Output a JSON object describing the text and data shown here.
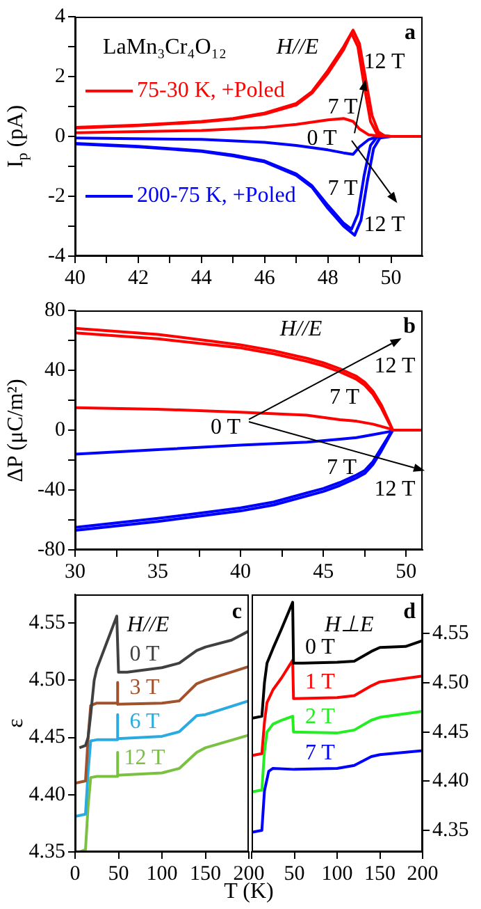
{
  "chart_data": [
    {
      "type": "line",
      "ylabel": "I$_{p}$ (pA)",
      "xlim": [
        40,
        51
      ],
      "xticks": [
        40,
        {
          "value": 41,
          "label": null
        },
        42,
        {
          "value": 43,
          "label": null
        },
        44,
        {
          "value": 45,
          "label": null
        },
        46,
        {
          "value": 47,
          "label": null
        },
        48,
        {
          "value": 49,
          "label": null
        },
        50
      ],
      "ylim": [
        -4,
        4
      ],
      "yticks": [
        -4,
        {
          "value": -3,
          "label": null
        },
        -2,
        {
          "value": -1,
          "label": null
        },
        0,
        {
          "value": 1,
          "label": null
        },
        2,
        {
          "value": 3,
          "label": null
        },
        4
      ],
      "legend": "left",
      "annotations": [
        "LaMn₃Cr₄O₁₂",
        "H//E",
        "a",
        {
          "text": "12 T",
          "x": 49.2,
          "y": 1.9
        },
        "7 T",
        "0 T",
        "7 T",
        "12 T"
      ],
      "series": [
        {
          "name": "75-30 K, +Poled",
          "color": "#ff0000",
          "x": [
            40,
            44,
            46,
            47,
            48,
            48.5,
            48.8,
            49,
            49.3,
            49.6,
            50,
            51
          ],
          "values": [
            0.12,
            0.2,
            0.3,
            0.4,
            0.55,
            0.6,
            0.5,
            0.25,
            0.05,
            0.02,
            0,
            0
          ]
        },
        {
          "color": "#ff0000",
          "x": [
            40,
            42,
            44,
            45,
            46,
            47,
            47.5,
            48,
            48.5,
            48.75,
            48.95,
            49.15,
            49.35,
            49.55,
            49.8,
            50,
            51
          ],
          "values": [
            0.28,
            0.36,
            0.48,
            0.58,
            0.75,
            1.05,
            1.45,
            2.1,
            2.9,
            3.45,
            3.0,
            1.7,
            0.5,
            0.1,
            0.02,
            0,
            0
          ]
        },
        {
          "color": "#ff0000",
          "x": [
            40,
            42,
            44,
            45,
            46,
            47,
            47.5,
            48,
            48.5,
            48.8,
            49,
            49.2,
            49.4,
            49.6,
            49.8,
            50,
            51
          ],
          "values": [
            0.3,
            0.38,
            0.5,
            0.6,
            0.78,
            1.1,
            1.5,
            2.2,
            3.0,
            3.55,
            3.1,
            1.9,
            0.7,
            0.15,
            0.02,
            0,
            0
          ]
        },
        {
          "name": "200-75 K, +Poled",
          "color": "#0000ff",
          "x": [
            40,
            44,
            46,
            47,
            48,
            48.5,
            48.8,
            49,
            49.3,
            49.6,
            50,
            51
          ],
          "values": [
            -0.05,
            -0.1,
            -0.2,
            -0.3,
            -0.45,
            -0.55,
            -0.6,
            -0.35,
            -0.1,
            0,
            0,
            0
          ]
        },
        {
          "color": "#0000ff",
          "x": [
            40,
            42,
            44,
            45,
            46,
            47,
            47.5,
            48,
            48.5,
            48.75,
            48.95,
            49.15,
            49.35,
            49.55,
            50,
            51
          ],
          "values": [
            -0.23,
            -0.33,
            -0.48,
            -0.62,
            -0.82,
            -1.25,
            -1.65,
            -2.3,
            -2.9,
            -3.1,
            -2.6,
            -1.3,
            -0.3,
            -0.03,
            0,
            0
          ]
        },
        {
          "color": "#0000ff",
          "x": [
            40,
            42,
            44,
            45,
            46,
            47,
            47.5,
            48,
            48.5,
            48.85,
            49.05,
            49.25,
            49.45,
            49.65,
            50,
            51
          ],
          "values": [
            -0.25,
            -0.35,
            -0.5,
            -0.65,
            -0.85,
            -1.3,
            -1.7,
            -2.4,
            -3.0,
            -3.3,
            -2.8,
            -1.5,
            -0.4,
            -0.05,
            0,
            0
          ]
        }
      ]
    },
    {
      "type": "line",
      "ylabel": "ΔP (μC/m²)",
      "xlim": [
        30,
        51
      ],
      "xticks": [
        30,
        {
          "value": 32.5,
          "label": null
        },
        35,
        {
          "value": 37.5,
          "label": null
        },
        40,
        {
          "value": 42.5,
          "label": null
        },
        45,
        {
          "value": 47.5,
          "label": null
        },
        50
      ],
      "ylim": [
        -80,
        80
      ],
      "yticks": [
        -80,
        {
          "value": -60,
          "label": null
        },
        -40,
        {
          "value": -20,
          "label": null
        },
        0,
        {
          "value": 20,
          "label": null
        },
        40,
        {
          "value": 60,
          "label": null
        },
        80
      ],
      "annotations": [
        "H//E",
        "b",
        "12 T",
        "7 T",
        "0 T",
        "7 T",
        "12 T"
      ],
      "series": [
        {
          "color": "#ff0000",
          "x": [
            30,
            35,
            40,
            44,
            46,
            47,
            48,
            49,
            49.2,
            51
          ],
          "values": [
            15,
            14,
            12,
            10,
            7,
            6,
            4,
            1,
            0,
            0
          ]
        },
        {
          "color": "#ff0000",
          "x": [
            30,
            35,
            40,
            42,
            44,
            45,
            46,
            47,
            47.5,
            48,
            48.5,
            49,
            49.2,
            50,
            51
          ],
          "values": [
            65,
            61,
            55,
            51,
            46,
            43,
            39,
            34,
            30,
            24,
            15,
            4,
            0,
            0,
            0
          ]
        },
        {
          "color": "#ff0000",
          "x": [
            30,
            35,
            40,
            42,
            44,
            45,
            46,
            47,
            47.5,
            48,
            48.5,
            49,
            49.2,
            50,
            51
          ],
          "values": [
            68,
            64,
            57,
            53,
            48,
            45,
            41,
            36,
            32,
            26,
            17,
            5,
            0,
            0,
            0
          ]
        },
        {
          "color": "#0000ff",
          "x": [
            30,
            35,
            40,
            44,
            46,
            47,
            48,
            49,
            49.2,
            51
          ],
          "values": [
            -16,
            -13,
            -10,
            -8,
            -6,
            -5,
            -3,
            -1,
            0,
            0
          ]
        },
        {
          "color": "#0000ff",
          "x": [
            30,
            35,
            40,
            42,
            44,
            45,
            46,
            47,
            47.5,
            48,
            48.5,
            49,
            49.2,
            50,
            51
          ],
          "values": [
            -65,
            -59,
            -52,
            -48,
            -42,
            -39,
            -35,
            -30,
            -27,
            -21,
            -12,
            -3,
            0,
            0,
            0
          ]
        },
        {
          "color": "#0000ff",
          "x": [
            30,
            35,
            40,
            42,
            44,
            45,
            46,
            47,
            47.5,
            48,
            48.5,
            49,
            49.2,
            50,
            51
          ],
          "values": [
            -67,
            -61,
            -54,
            -50,
            -44,
            -41,
            -37,
            -32,
            -29,
            -23,
            -14,
            -4,
            0,
            0,
            0
          ]
        }
      ]
    },
    {
      "type": "line",
      "xlabel": "T (K)",
      "ylabel": "ε",
      "xlim": [
        0,
        200
      ],
      "xticks": [
        0,
        50,
        100,
        150,
        200
      ],
      "ylim": [
        4.35,
        4.575
      ],
      "yticks": [
        4.35,
        {
          "value": 4.4,
          "label": "4.40"
        },
        4.45,
        {
          "value": 4.5,
          "label": "4.50"
        },
        4.55
      ],
      "annotations": [
        "H//E",
        "c"
      ],
      "series": [
        {
          "name": "0 T",
          "color": "#404040",
          "x": [
            5,
            12,
            15,
            18,
            22,
            25,
            35,
            48,
            50,
            60,
            100,
            120,
            140,
            150,
            180,
            200
          ],
          "values": [
            4.441,
            4.443,
            4.45,
            4.47,
            4.5,
            4.51,
            4.53,
            4.556,
            4.507,
            4.507,
            4.511,
            4.515,
            4.526,
            4.529,
            4.535,
            4.543
          ]
        },
        {
          "name": "3 T",
          "color": "#a0522d",
          "x": [
            0,
            12,
            15,
            18,
            25,
            48,
            48.5,
            49.5,
            100,
            120,
            140,
            150,
            200
          ],
          "values": [
            4.41,
            4.412,
            4.45,
            4.478,
            4.48,
            4.48,
            4.498,
            4.479,
            4.48,
            4.482,
            4.497,
            4.5,
            4.512
          ]
        },
        {
          "name": "6 T",
          "color": "#29abe2",
          "x": [
            0,
            12,
            15,
            18,
            25,
            48,
            48.5,
            49.5,
            100,
            120,
            140,
            150,
            200
          ],
          "values": [
            4.381,
            4.383,
            4.42,
            4.447,
            4.448,
            4.448,
            4.47,
            4.449,
            4.451,
            4.455,
            4.469,
            4.47,
            4.482
          ]
        },
        {
          "name": "12 T",
          "color": "#7ac142",
          "x": [
            5,
            12,
            15,
            18,
            25,
            48,
            48.5,
            49.5,
            100,
            120,
            140,
            150,
            200
          ],
          "values": [
            4.35,
            4.352,
            4.39,
            4.415,
            4.416,
            4.416,
            4.437,
            4.417,
            4.419,
            4.423,
            4.437,
            4.441,
            4.452
          ]
        }
      ]
    },
    {
      "type": "line",
      "xlim": [
        0,
        200
      ],
      "xticks": [
        {
          "value": 0,
          "label": null
        },
        50,
        100,
        150,
        200
      ],
      "y2lim": [
        4.328,
        4.59
      ],
      "y2ticks": [
        4.35,
        {
          "value": 4.4,
          "label": "4.40"
        },
        4.45,
        {
          "value": 4.5,
          "label": "4.50"
        },
        4.55
      ],
      "annotations": [
        "H⊥E",
        "d"
      ],
      "series": [
        {
          "name": "0 T",
          "color": "#000000",
          "axis": "y2",
          "x": [
            0,
            12,
            15,
            18,
            25,
            35,
            48,
            49,
            60,
            100,
            120,
            140,
            150,
            180,
            200
          ],
          "values": [
            4.464,
            4.466,
            4.5,
            4.52,
            4.535,
            4.555,
            4.582,
            4.52,
            4.52,
            4.521,
            4.522,
            4.532,
            4.536,
            4.537,
            4.543
          ]
        },
        {
          "name": "1 T",
          "color": "#ff0000",
          "axis": "y2",
          "x": [
            0,
            12,
            15,
            18,
            25,
            35,
            48,
            49,
            100,
            120,
            140,
            150,
            200
          ],
          "values": [
            4.426,
            4.428,
            4.46,
            4.48,
            4.493,
            4.505,
            4.523,
            4.484,
            4.485,
            4.487,
            4.497,
            4.501,
            4.507
          ]
        },
        {
          "name": "2 T",
          "color": "#22ee22",
          "axis": "y2",
          "x": [
            0,
            12,
            15,
            18,
            25,
            35,
            48,
            49,
            100,
            120,
            140,
            150,
            200
          ],
          "values": [
            4.389,
            4.391,
            4.43,
            4.45,
            4.458,
            4.462,
            4.466,
            4.45,
            4.449,
            4.452,
            4.462,
            4.465,
            4.471
          ]
        },
        {
          "name": "7 T",
          "color": "#0000ff",
          "axis": "y2",
          "x": [
            0,
            12,
            15,
            20,
            25,
            50,
            100,
            120,
            140,
            150,
            200
          ],
          "values": [
            4.348,
            4.35,
            4.39,
            4.41,
            4.413,
            4.412,
            4.413,
            4.416,
            4.425,
            4.427,
            4.431
          ]
        }
      ]
    }
  ]
}
